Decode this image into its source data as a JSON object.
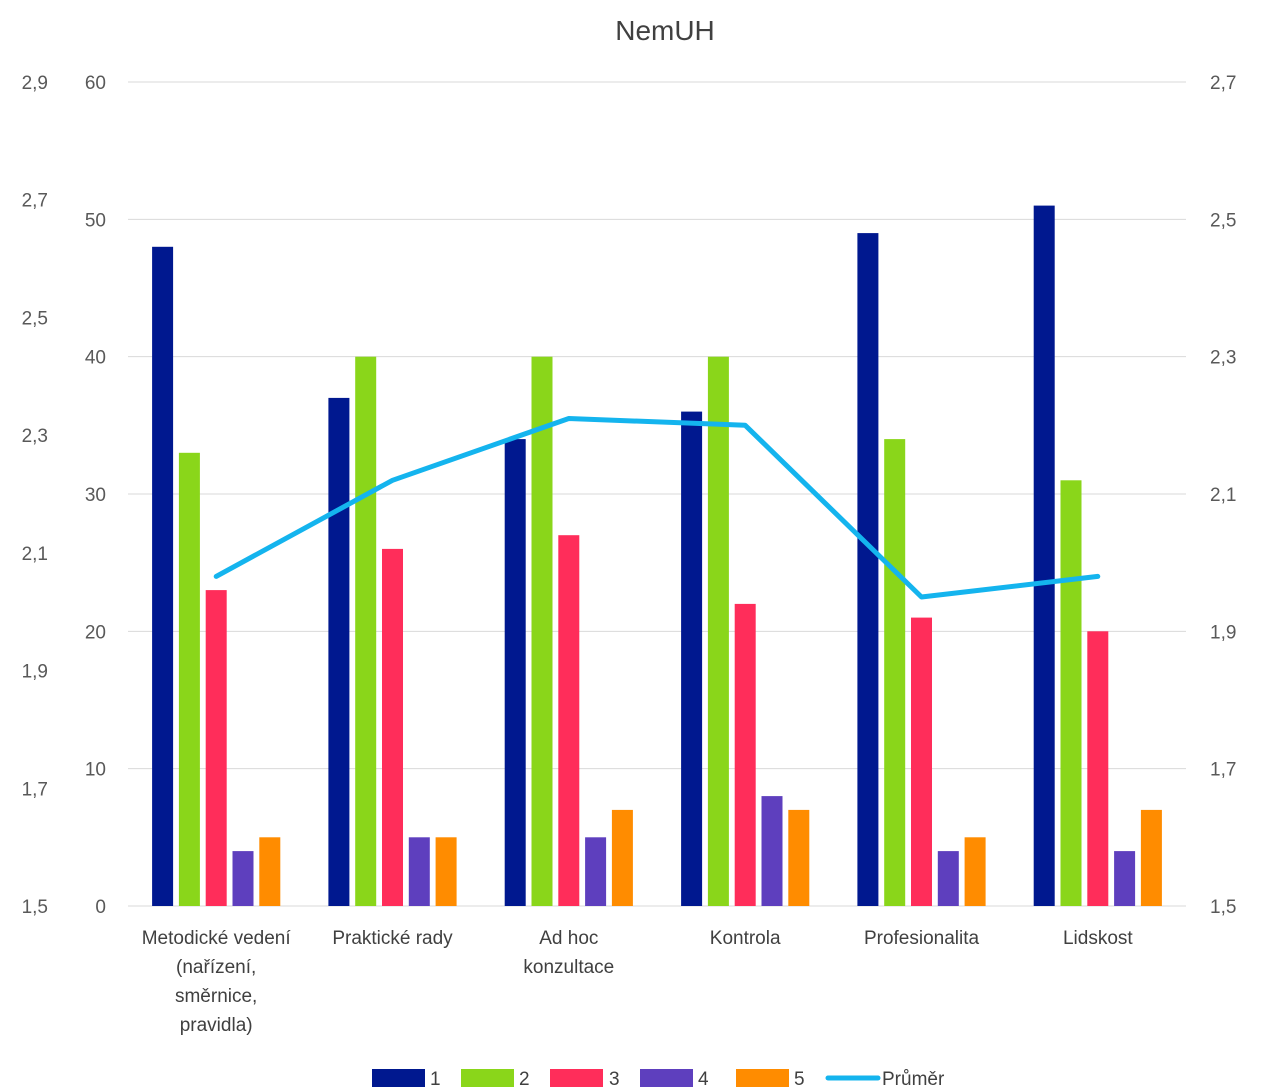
{
  "chart_data": {
    "type": "bar",
    "title": "NemUH",
    "categories": [
      [
        "Metodické vedení",
        "(nařízení,",
        "směrnice,",
        "pravidla)"
      ],
      [
        "Praktické rady"
      ],
      [
        "Ad hoc",
        "konzultace"
      ],
      [
        "Kontrola"
      ],
      [
        "Profesionalita"
      ],
      [
        "Lidskost"
      ]
    ],
    "series": [
      {
        "name": "1",
        "color": "#00188f",
        "values": [
          48,
          37,
          34,
          36,
          49,
          51
        ]
      },
      {
        "name": "2",
        "color": "#8ad61a",
        "values": [
          33,
          40,
          40,
          40,
          34,
          31
        ]
      },
      {
        "name": "3",
        "color": "#ff2d5a",
        "values": [
          23,
          26,
          27,
          22,
          21,
          20
        ]
      },
      {
        "name": "4",
        "color": "#5e3fbe",
        "values": [
          4,
          5,
          5,
          8,
          4,
          4
        ]
      },
      {
        "name": "5",
        "color": "#ff8c00",
        "values": [
          5,
          5,
          7,
          7,
          5,
          7
        ]
      }
    ],
    "line_series": {
      "name": "Průměr",
      "color": "#14b4ee",
      "axis": "right",
      "values": [
        1.98,
        2.12,
        2.21,
        2.2,
        1.95,
        1.98
      ]
    },
    "y_left": {
      "ticks": [
        "0",
        "10",
        "20",
        "30",
        "40",
        "50",
        "60"
      ],
      "range": [
        0,
        60
      ]
    },
    "y_outer_left": {
      "ticks": [
        "1,5",
        "1,7",
        "1,9",
        "2,1",
        "2,3",
        "2,5",
        "2,7",
        "2,9"
      ],
      "range": [
        1.5,
        2.9
      ]
    },
    "y_right": {
      "ticks": [
        "1,5",
        "1,7",
        "1,9",
        "2,1",
        "2,3",
        "2,5",
        "2,7"
      ],
      "range": [
        1.5,
        2.7
      ]
    },
    "grid": true,
    "legend_position": "bottom"
  }
}
